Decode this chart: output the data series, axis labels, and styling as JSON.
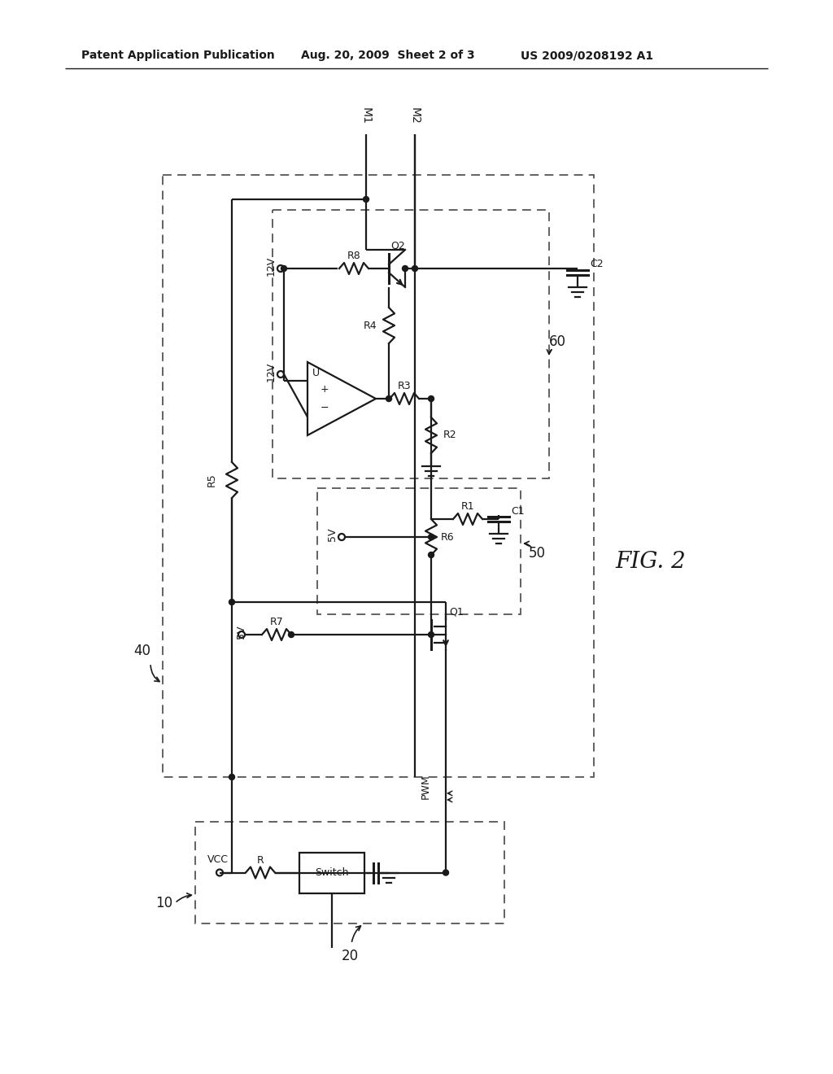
{
  "bg_color": "#ffffff",
  "line_color": "#1a1a1a",
  "dash_color": "#555555",
  "header_left": "Patent Application Publication",
  "header_mid": "Aug. 20, 2009  Sheet 2 of 3",
  "header_right": "US 2009/0208192 A1",
  "fig_label": "FIG. 2",
  "label_40": "40",
  "label_10": "10",
  "label_20": "20",
  "label_50": "50",
  "label_60": "60",
  "label_M1": "M1",
  "label_M2": "M2",
  "label_C2": "C2",
  "label_C1": "C1",
  "label_Q2": "Q2",
  "label_Q1": "Q1",
  "label_R8": "R8",
  "label_R7": "R7",
  "label_R6": "R6",
  "label_R5": "R5",
  "label_R4": "R4",
  "label_R3": "R3",
  "label_R2": "R2",
  "label_R1": "R1",
  "label_R": "R",
  "label_U": "U",
  "label_12V_1": "12V",
  "label_12V_2": "12V",
  "label_5V_1": "5V",
  "label_5V_2": "5V",
  "label_VCC": "VCC",
  "label_PWM": "PWM",
  "label_Switch": "Switch"
}
